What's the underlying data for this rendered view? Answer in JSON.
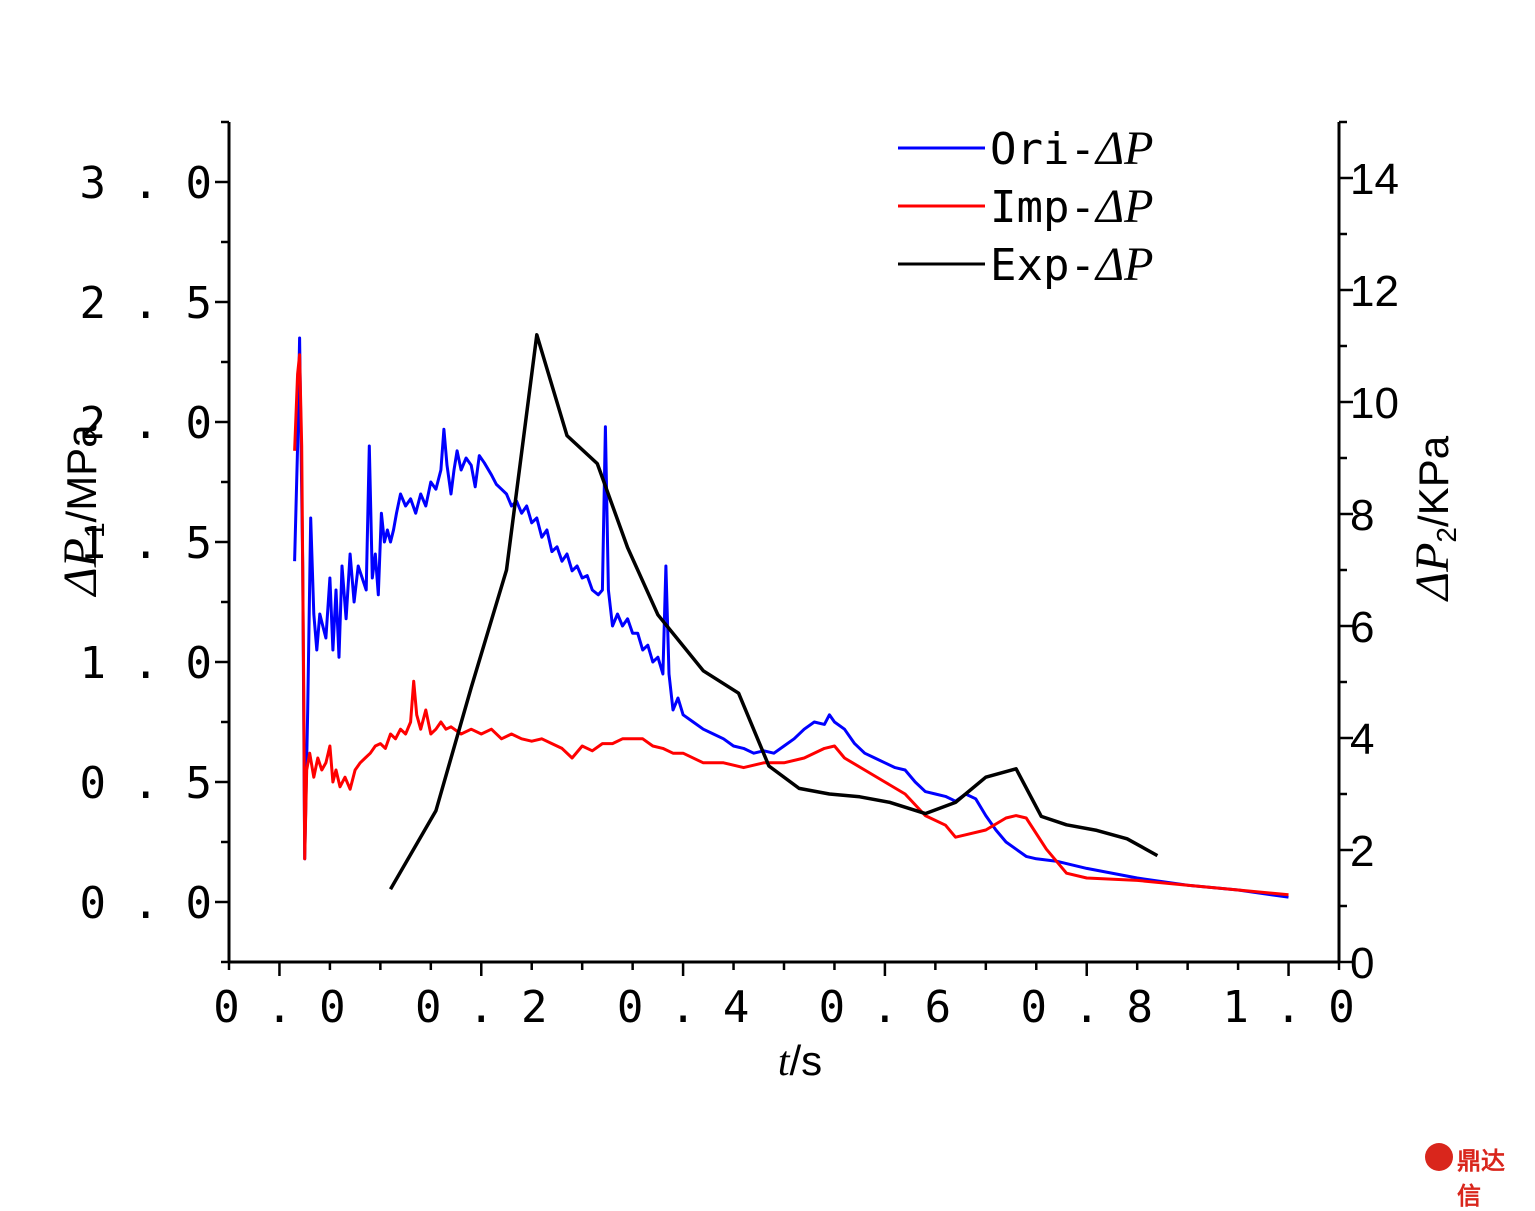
{
  "chart_data": {
    "type": "line",
    "xlabel": {
      "var": "t",
      "unit": "/s"
    },
    "ylabel_left": {
      "var": "ΔP",
      "sub": "1",
      "unit": "/MPa"
    },
    "ylabel_right": {
      "var": "ΔP",
      "sub": "2",
      "unit": "/KPa"
    },
    "xlim": [
      -0.05,
      1.05
    ],
    "ylim_left": [
      -0.25,
      3.25
    ],
    "ylim_right": [
      0,
      15
    ],
    "x_ticks": [
      "0.0",
      "0.2",
      "0.4",
      "0.6",
      "0.8",
      "1.0"
    ],
    "y_left_ticks": [
      "0.0",
      "0.5",
      "1.0",
      "1.5",
      "2.0",
      "2.5",
      "3.0"
    ],
    "y_right_ticks": [
      "0",
      "2",
      "4",
      "6",
      "8",
      "10",
      "12",
      "14"
    ],
    "legend_position": "top-right",
    "series": [
      {
        "name": "Ori-ΔP",
        "label_prefix": "Ori-",
        "axis": "left",
        "color": "#0000ff",
        "points": [
          [
            0.015,
            1.42
          ],
          [
            0.018,
            1.9
          ],
          [
            0.02,
            2.35
          ],
          [
            0.023,
            1.4
          ],
          [
            0.025,
            0.18
          ],
          [
            0.028,
            0.8
          ],
          [
            0.031,
            1.6
          ],
          [
            0.034,
            1.2
          ],
          [
            0.037,
            1.05
          ],
          [
            0.04,
            1.2
          ],
          [
            0.043,
            1.15
          ],
          [
            0.046,
            1.1
          ],
          [
            0.05,
            1.35
          ],
          [
            0.053,
            1.05
          ],
          [
            0.056,
            1.3
          ],
          [
            0.059,
            1.02
          ],
          [
            0.062,
            1.4
          ],
          [
            0.066,
            1.18
          ],
          [
            0.07,
            1.45
          ],
          [
            0.074,
            1.25
          ],
          [
            0.078,
            1.4
          ],
          [
            0.082,
            1.35
          ],
          [
            0.086,
            1.3
          ],
          [
            0.089,
            1.9
          ],
          [
            0.092,
            1.35
          ],
          [
            0.095,
            1.45
          ],
          [
            0.098,
            1.28
          ],
          [
            0.101,
            1.62
          ],
          [
            0.104,
            1.5
          ],
          [
            0.107,
            1.55
          ],
          [
            0.11,
            1.5
          ],
          [
            0.113,
            1.55
          ],
          [
            0.116,
            1.62
          ],
          [
            0.12,
            1.7
          ],
          [
            0.125,
            1.65
          ],
          [
            0.13,
            1.68
          ],
          [
            0.135,
            1.62
          ],
          [
            0.14,
            1.7
          ],
          [
            0.145,
            1.65
          ],
          [
            0.15,
            1.75
          ],
          [
            0.155,
            1.72
          ],
          [
            0.16,
            1.8
          ],
          [
            0.163,
            1.97
          ],
          [
            0.166,
            1.82
          ],
          [
            0.17,
            1.7
          ],
          [
            0.173,
            1.8
          ],
          [
            0.176,
            1.88
          ],
          [
            0.18,
            1.8
          ],
          [
            0.185,
            1.85
          ],
          [
            0.19,
            1.82
          ],
          [
            0.194,
            1.73
          ],
          [
            0.198,
            1.86
          ],
          [
            0.203,
            1.83
          ],
          [
            0.21,
            1.78
          ],
          [
            0.215,
            1.74
          ],
          [
            0.22,
            1.72
          ],
          [
            0.225,
            1.7
          ],
          [
            0.23,
            1.65
          ],
          [
            0.235,
            1.67
          ],
          [
            0.24,
            1.62
          ],
          [
            0.245,
            1.65
          ],
          [
            0.25,
            1.58
          ],
          [
            0.255,
            1.6
          ],
          [
            0.26,
            1.52
          ],
          [
            0.265,
            1.55
          ],
          [
            0.27,
            1.46
          ],
          [
            0.275,
            1.48
          ],
          [
            0.28,
            1.42
          ],
          [
            0.285,
            1.45
          ],
          [
            0.29,
            1.38
          ],
          [
            0.295,
            1.4
          ],
          [
            0.3,
            1.35
          ],
          [
            0.305,
            1.36
          ],
          [
            0.31,
            1.3
          ],
          [
            0.316,
            1.28
          ],
          [
            0.32,
            1.3
          ],
          [
            0.323,
            1.98
          ],
          [
            0.326,
            1.3
          ],
          [
            0.33,
            1.15
          ],
          [
            0.335,
            1.2
          ],
          [
            0.34,
            1.15
          ],
          [
            0.345,
            1.18
          ],
          [
            0.35,
            1.12
          ],
          [
            0.355,
            1.12
          ],
          [
            0.36,
            1.05
          ],
          [
            0.365,
            1.07
          ],
          [
            0.37,
            1.0
          ],
          [
            0.375,
            1.02
          ],
          [
            0.38,
            0.95
          ],
          [
            0.383,
            1.4
          ],
          [
            0.386,
            0.95
          ],
          [
            0.39,
            0.8
          ],
          [
            0.395,
            0.85
          ],
          [
            0.4,
            0.78
          ],
          [
            0.41,
            0.75
          ],
          [
            0.42,
            0.72
          ],
          [
            0.43,
            0.7
          ],
          [
            0.44,
            0.68
          ],
          [
            0.45,
            0.65
          ],
          [
            0.46,
            0.64
          ],
          [
            0.47,
            0.62
          ],
          [
            0.48,
            0.63
          ],
          [
            0.49,
            0.62
          ],
          [
            0.5,
            0.65
          ],
          [
            0.51,
            0.68
          ],
          [
            0.52,
            0.72
          ],
          [
            0.53,
            0.75
          ],
          [
            0.54,
            0.74
          ],
          [
            0.545,
            0.78
          ],
          [
            0.55,
            0.75
          ],
          [
            0.56,
            0.72
          ],
          [
            0.57,
            0.66
          ],
          [
            0.58,
            0.62
          ],
          [
            0.59,
            0.6
          ],
          [
            0.6,
            0.58
          ],
          [
            0.61,
            0.56
          ],
          [
            0.62,
            0.55
          ],
          [
            0.63,
            0.5
          ],
          [
            0.64,
            0.46
          ],
          [
            0.65,
            0.45
          ],
          [
            0.66,
            0.44
          ],
          [
            0.67,
            0.42
          ],
          [
            0.68,
            0.45
          ],
          [
            0.69,
            0.43
          ],
          [
            0.7,
            0.36
          ],
          [
            0.71,
            0.3
          ],
          [
            0.72,
            0.25
          ],
          [
            0.73,
            0.22
          ],
          [
            0.74,
            0.19
          ],
          [
            0.75,
            0.18
          ],
          [
            0.77,
            0.17
          ],
          [
            0.8,
            0.14
          ],
          [
            0.85,
            0.1
          ],
          [
            0.9,
            0.07
          ],
          [
            0.95,
            0.05
          ],
          [
            1.0,
            0.02
          ]
        ]
      },
      {
        "name": "Imp-ΔP",
        "label_prefix": "Imp-",
        "axis": "left",
        "color": "#ff0000",
        "points": [
          [
            0.015,
            1.88
          ],
          [
            0.018,
            2.2
          ],
          [
            0.02,
            2.28
          ],
          [
            0.022,
            1.9
          ],
          [
            0.024,
            0.9
          ],
          [
            0.025,
            0.18
          ],
          [
            0.027,
            0.55
          ],
          [
            0.03,
            0.62
          ],
          [
            0.034,
            0.52
          ],
          [
            0.038,
            0.6
          ],
          [
            0.042,
            0.55
          ],
          [
            0.046,
            0.58
          ],
          [
            0.05,
            0.65
          ],
          [
            0.053,
            0.5
          ],
          [
            0.056,
            0.55
          ],
          [
            0.06,
            0.48
          ],
          [
            0.065,
            0.52
          ],
          [
            0.07,
            0.47
          ],
          [
            0.075,
            0.55
          ],
          [
            0.08,
            0.58
          ],
          [
            0.085,
            0.6
          ],
          [
            0.09,
            0.62
          ],
          [
            0.095,
            0.65
          ],
          [
            0.1,
            0.66
          ],
          [
            0.105,
            0.64
          ],
          [
            0.11,
            0.7
          ],
          [
            0.115,
            0.68
          ],
          [
            0.12,
            0.72
          ],
          [
            0.125,
            0.7
          ],
          [
            0.13,
            0.75
          ],
          [
            0.133,
            0.92
          ],
          [
            0.136,
            0.78
          ],
          [
            0.14,
            0.72
          ],
          [
            0.145,
            0.8
          ],
          [
            0.15,
            0.7
          ],
          [
            0.155,
            0.72
          ],
          [
            0.16,
            0.75
          ],
          [
            0.165,
            0.72
          ],
          [
            0.17,
            0.73
          ],
          [
            0.18,
            0.7
          ],
          [
            0.19,
            0.72
          ],
          [
            0.2,
            0.7
          ],
          [
            0.21,
            0.72
          ],
          [
            0.22,
            0.68
          ],
          [
            0.23,
            0.7
          ],
          [
            0.24,
            0.68
          ],
          [
            0.25,
            0.67
          ],
          [
            0.26,
            0.68
          ],
          [
            0.27,
            0.66
          ],
          [
            0.28,
            0.64
          ],
          [
            0.29,
            0.6
          ],
          [
            0.3,
            0.65
          ],
          [
            0.31,
            0.63
          ],
          [
            0.32,
            0.66
          ],
          [
            0.33,
            0.66
          ],
          [
            0.34,
            0.68
          ],
          [
            0.35,
            0.68
          ],
          [
            0.36,
            0.68
          ],
          [
            0.37,
            0.65
          ],
          [
            0.38,
            0.64
          ],
          [
            0.39,
            0.62
          ],
          [
            0.4,
            0.62
          ],
          [
            0.42,
            0.58
          ],
          [
            0.44,
            0.58
          ],
          [
            0.46,
            0.56
          ],
          [
            0.48,
            0.58
          ],
          [
            0.5,
            0.58
          ],
          [
            0.52,
            0.6
          ],
          [
            0.54,
            0.64
          ],
          [
            0.55,
            0.65
          ],
          [
            0.56,
            0.6
          ],
          [
            0.58,
            0.55
          ],
          [
            0.6,
            0.5
          ],
          [
            0.62,
            0.45
          ],
          [
            0.64,
            0.36
          ],
          [
            0.66,
            0.32
          ],
          [
            0.67,
            0.27
          ],
          [
            0.68,
            0.28
          ],
          [
            0.7,
            0.3
          ],
          [
            0.72,
            0.35
          ],
          [
            0.73,
            0.36
          ],
          [
            0.74,
            0.35
          ],
          [
            0.76,
            0.22
          ],
          [
            0.78,
            0.12
          ],
          [
            0.8,
            0.1
          ],
          [
            0.85,
            0.09
          ],
          [
            0.9,
            0.07
          ],
          [
            0.95,
            0.05
          ],
          [
            1.0,
            0.03
          ]
        ]
      },
      {
        "name": "Exp-ΔP",
        "label_prefix": "Exp-",
        "axis": "right",
        "color": "#000000",
        "points": [
          [
            0.11,
            1.3
          ],
          [
            0.155,
            2.7
          ],
          [
            0.19,
            4.9
          ],
          [
            0.225,
            7.0
          ],
          [
            0.255,
            11.2
          ],
          [
            0.285,
            9.4
          ],
          [
            0.315,
            8.9
          ],
          [
            0.345,
            7.4
          ],
          [
            0.375,
            6.2
          ],
          [
            0.42,
            5.2
          ],
          [
            0.455,
            4.8
          ],
          [
            0.485,
            3.5
          ],
          [
            0.515,
            3.1
          ],
          [
            0.545,
            3.0
          ],
          [
            0.575,
            2.95
          ],
          [
            0.605,
            2.85
          ],
          [
            0.64,
            2.65
          ],
          [
            0.67,
            2.85
          ],
          [
            0.7,
            3.3
          ],
          [
            0.73,
            3.45
          ],
          [
            0.755,
            2.6
          ],
          [
            0.78,
            2.45
          ],
          [
            0.81,
            2.35
          ],
          [
            0.84,
            2.2
          ],
          [
            0.87,
            1.9
          ]
        ]
      }
    ]
  },
  "watermark": {
    "text": "鼎达信"
  }
}
